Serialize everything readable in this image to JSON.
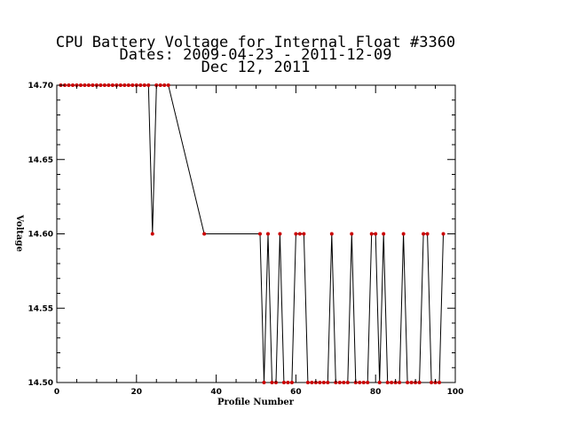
{
  "chart_data": {
    "type": "line",
    "title_lines": [
      "CPU Battery Voltage for Internal Float #3360",
      "Dates:  2009-04-23 -  2011-12-09",
      "Dec 12, 2011"
    ],
    "xlabel": "Profile Number",
    "ylabel": "Voltage",
    "xlim": [
      0,
      100
    ],
    "ylim": [
      14.5,
      14.7
    ],
    "x_ticks": [
      0,
      20,
      40,
      60,
      80,
      100
    ],
    "x_tick_labels": [
      "0",
      "20",
      "40",
      "60",
      "80",
      "100"
    ],
    "y_ticks": [
      14.5,
      14.55,
      14.6,
      14.65,
      14.7
    ],
    "y_tick_labels": [
      "14.50",
      "14.55",
      "14.60",
      "14.65",
      "14.70"
    ],
    "grid": false,
    "line_color": "#000000",
    "marker_color": "#cc0000",
    "series": [
      {
        "x": [
          1,
          2,
          3,
          4,
          5,
          6,
          7,
          8,
          9,
          10,
          11,
          12,
          13,
          14,
          15,
          16,
          17,
          18,
          19,
          20,
          21,
          22,
          23,
          24,
          25,
          26,
          27,
          28,
          37,
          51,
          52,
          53,
          54,
          55,
          56,
          57,
          58,
          59,
          60,
          61,
          62,
          63,
          64,
          65,
          66,
          67,
          68,
          69,
          70,
          71,
          72,
          73,
          74,
          75,
          76,
          77,
          78,
          79,
          80,
          81,
          82,
          83,
          84,
          85,
          86,
          87,
          88,
          89,
          90,
          91,
          92,
          93,
          94,
          95,
          96,
          97
        ],
        "y": [
          14.7,
          14.7,
          14.7,
          14.7,
          14.7,
          14.7,
          14.7,
          14.7,
          14.7,
          14.7,
          14.7,
          14.7,
          14.7,
          14.7,
          14.7,
          14.7,
          14.7,
          14.7,
          14.7,
          14.7,
          14.7,
          14.7,
          14.7,
          14.6,
          14.7,
          14.7,
          14.7,
          14.7,
          14.6,
          14.6,
          14.5,
          14.6,
          14.5,
          14.5,
          14.6,
          14.5,
          14.5,
          14.5,
          14.6,
          14.6,
          14.6,
          14.5,
          14.5,
          14.5,
          14.5,
          14.5,
          14.5,
          14.6,
          14.5,
          14.5,
          14.5,
          14.5,
          14.6,
          14.5,
          14.5,
          14.5,
          14.5,
          14.6,
          14.6,
          14.5,
          14.6,
          14.5,
          14.5,
          14.5,
          14.5,
          14.6,
          14.5,
          14.5,
          14.5,
          14.5,
          14.6,
          14.6,
          14.5,
          14.5,
          14.5,
          14.6
        ]
      }
    ]
  }
}
